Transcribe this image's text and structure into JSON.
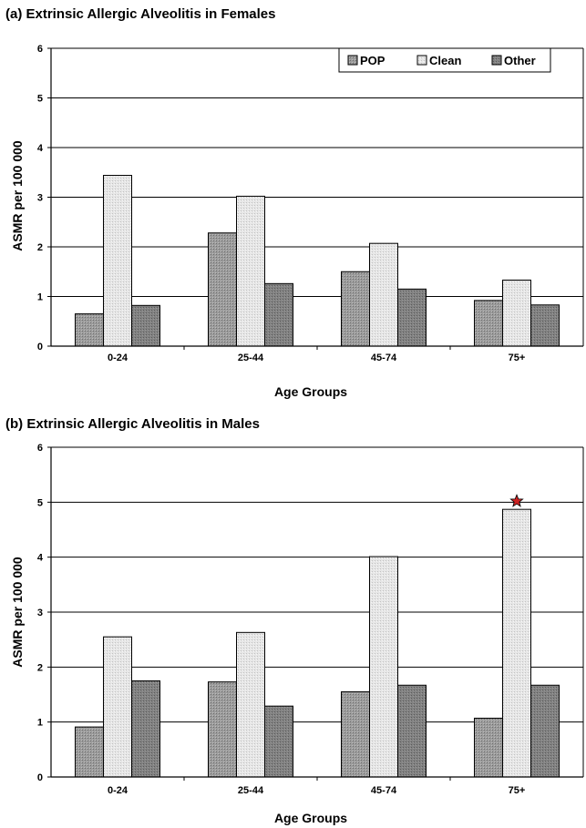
{
  "chart_data": [
    {
      "type": "bar",
      "title": "(a) Extrinsic Allergic Alveolitis in Females",
      "xlabel": "Age Groups",
      "ylabel": "ASMR per 100 000",
      "ylim": [
        0,
        6
      ],
      "yticks": [
        0,
        1,
        2,
        3,
        4,
        5,
        6
      ],
      "grid": true,
      "legend": "top-right",
      "categories": [
        "0-24",
        "25-44",
        "45-74",
        "75+"
      ],
      "series": [
        {
          "name": "POP",
          "values": [
            0.65,
            2.28,
            1.5,
            0.92
          ]
        },
        {
          "name": "Clean",
          "values": [
            3.44,
            3.02,
            2.07,
            1.33
          ]
        },
        {
          "name": "Other",
          "values": [
            0.82,
            1.26,
            1.15,
            0.83
          ]
        }
      ],
      "annotations": []
    },
    {
      "type": "bar",
      "title": "(b) Extrinsic Allergic Alveolitis in Males",
      "xlabel": "Age Groups",
      "ylabel": "ASMR per 100 000",
      "ylim": [
        0,
        6
      ],
      "yticks": [
        0,
        1,
        2,
        3,
        4,
        5,
        6
      ],
      "grid": true,
      "legend": "none",
      "categories": [
        "0-24",
        "25-44",
        "45-74",
        "75+"
      ],
      "series": [
        {
          "name": "POP",
          "values": [
            0.91,
            1.73,
            1.55,
            1.07
          ]
        },
        {
          "name": "Clean",
          "values": [
            2.55,
            2.63,
            4.01,
            4.87
          ]
        },
        {
          "name": "Other",
          "values": [
            1.75,
            1.29,
            1.67,
            1.67
          ]
        }
      ],
      "annotations": [
        {
          "type": "star",
          "category": "75+",
          "series": "Clean",
          "color": "#cc2222"
        }
      ]
    }
  ],
  "styles": {
    "POP": "#909090",
    "Clean": "#dedede",
    "Other": "#7c7c7c",
    "grid": "#000000",
    "star": "#cc2222"
  }
}
